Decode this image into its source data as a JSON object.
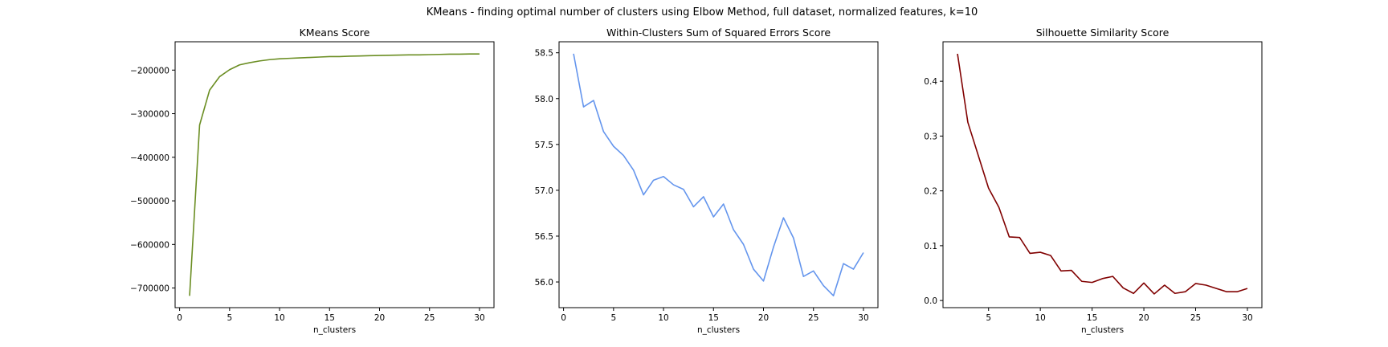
{
  "figure_title": "KMeans - finding optimal number of clusters using Elbow Method, full dataset, normalized features, k=10",
  "chart_data": [
    {
      "type": "line",
      "title": "KMeans Score",
      "xlabel": "n_clusters",
      "ylabel": "",
      "color": "#6b8e23",
      "xlim": [
        -0.45,
        31.45
      ],
      "ylim": [
        -745000,
        -135000
      ],
      "xticks": [
        0,
        5,
        10,
        15,
        20,
        25,
        30
      ],
      "yticks": [
        -700000,
        -600000,
        -500000,
        -400000,
        -300000,
        -200000
      ],
      "ytick_labels": [
        "−700000",
        "−600000",
        "−500000",
        "−400000",
        "−300000",
        "−200000"
      ],
      "x": [
        1,
        2,
        3,
        4,
        5,
        6,
        7,
        8,
        9,
        10,
        11,
        12,
        13,
        14,
        15,
        16,
        17,
        18,
        19,
        20,
        21,
        22,
        23,
        24,
        25,
        26,
        27,
        28,
        29,
        30
      ],
      "values": [
        -718000,
        -326000,
        -246000,
        -215000,
        -199000,
        -188000,
        -183000,
        -179000,
        -176000,
        -174000,
        -173000,
        -172000,
        -171000,
        -170000,
        -169000,
        -169000,
        -168000,
        -167500,
        -167000,
        -166500,
        -166000,
        -165500,
        -165000,
        -165000,
        -164500,
        -164000,
        -163500,
        -163500,
        -163000,
        -163000
      ]
    },
    {
      "type": "line",
      "title": "Within-Clusters Sum of Squared Errors Score",
      "xlabel": "n_clusters",
      "ylabel": "",
      "color": "#6495ed",
      "xlim": [
        -0.45,
        31.45
      ],
      "ylim": [
        55.72,
        58.62
      ],
      "xticks": [
        0,
        5,
        10,
        15,
        20,
        25,
        30
      ],
      "yticks": [
        56.0,
        56.5,
        57.0,
        57.5,
        58.0,
        58.5
      ],
      "ytick_labels": [
        "56.0",
        "56.5",
        "57.0",
        "57.5",
        "58.0",
        "58.5"
      ],
      "x": [
        1,
        2,
        3,
        4,
        5,
        6,
        7,
        8,
        9,
        10,
        11,
        12,
        13,
        14,
        15,
        16,
        17,
        18,
        19,
        20,
        21,
        22,
        23,
        24,
        25,
        26,
        27,
        28,
        29,
        30
      ],
      "values": [
        58.49,
        57.91,
        57.98,
        57.64,
        57.48,
        57.38,
        57.22,
        56.95,
        57.11,
        57.15,
        57.06,
        57.01,
        56.82,
        56.93,
        56.71,
        56.85,
        56.57,
        56.41,
        56.14,
        56.01,
        56.38,
        56.7,
        56.48,
        56.06,
        56.12,
        55.96,
        55.85,
        56.2,
        56.14,
        56.32
      ]
    },
    {
      "type": "line",
      "title": "Silhouette Similarity Score",
      "xlabel": "n_clusters",
      "ylabel": "",
      "color": "#800000",
      "xlim": [
        0.6,
        31.4
      ],
      "ylim": [
        -0.013,
        0.472
      ],
      "xticks": [
        5,
        10,
        15,
        20,
        25,
        30
      ],
      "yticks": [
        0.0,
        0.1,
        0.2,
        0.3,
        0.4
      ],
      "ytick_labels": [
        "0.0",
        "0.1",
        "0.2",
        "0.3",
        "0.4"
      ],
      "x": [
        2,
        3,
        4,
        5,
        6,
        7,
        8,
        9,
        10,
        11,
        12,
        13,
        14,
        15,
        16,
        17,
        18,
        19,
        20,
        21,
        22,
        23,
        24,
        25,
        26,
        27,
        28,
        29,
        30
      ],
      "values": [
        0.45,
        0.325,
        0.265,
        0.205,
        0.17,
        0.116,
        0.115,
        0.086,
        0.088,
        0.082,
        0.054,
        0.055,
        0.035,
        0.033,
        0.04,
        0.044,
        0.023,
        0.013,
        0.032,
        0.012,
        0.028,
        0.013,
        0.016,
        0.031,
        0.028,
        0.022,
        0.016,
        0.016,
        0.022
      ]
    }
  ]
}
